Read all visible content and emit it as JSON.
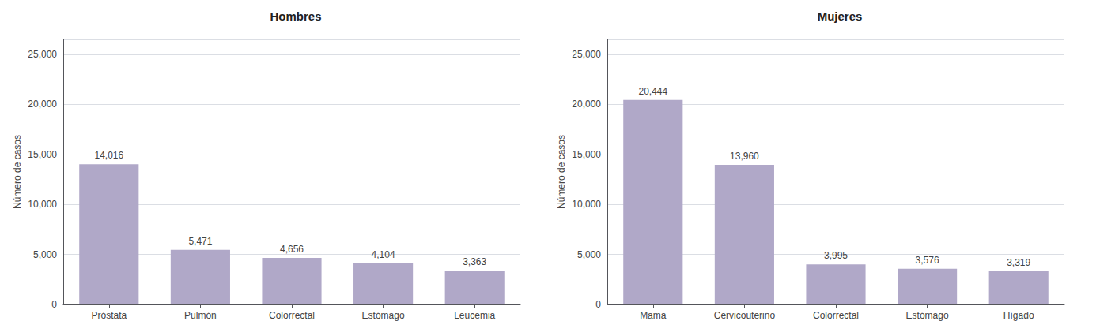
{
  "chart_data": [
    {
      "type": "bar",
      "title": "Hombres",
      "categories": [
        "Próstata",
        "Pulmón",
        "Colorrectal",
        "Estómago",
        "Leucemia"
      ],
      "values": [
        14016,
        5471,
        4656,
        4104,
        3363
      ],
      "value_labels": [
        "14,016",
        "5,471",
        "4,656",
        "4,104",
        "3,363"
      ],
      "color": "#b0a8c8",
      "ylabel": "Número de casos",
      "ylim": [
        0,
        26500
      ],
      "yticks": [
        0,
        {
          "value": 5000,
          "label": "5,000"
        },
        {
          "value": 10000,
          "label": "10,000"
        },
        {
          "value": 15000,
          "label": "15,000"
        },
        {
          "value": 20000,
          "label": "20,000"
        },
        {
          "value": 25000,
          "label": "25,000"
        }
      ],
      "grid": true,
      "data_labels": true
    },
    {
      "type": "bar",
      "title": "Mujeres",
      "categories": [
        "Mama",
        "Cervicouterino",
        "Colorrectal",
        "Estómago",
        "Hígado"
      ],
      "values": [
        20444,
        13960,
        3995,
        3576,
        3319
      ],
      "value_labels": [
        "20,444",
        "13,960",
        "3,995",
        "3,576",
        "3,319"
      ],
      "color": "#b0a8c8",
      "ylabel": "Número de casos",
      "ylim": [
        0,
        26500
      ],
      "yticks": [
        0,
        {
          "value": 5000,
          "label": "5,000"
        },
        {
          "value": 10000,
          "label": "10,000"
        },
        {
          "value": 15000,
          "label": "15,000"
        },
        {
          "value": 20000,
          "label": "20,000"
        },
        {
          "value": 25000,
          "label": "25,000"
        }
      ],
      "grid": true,
      "data_labels": true
    }
  ]
}
